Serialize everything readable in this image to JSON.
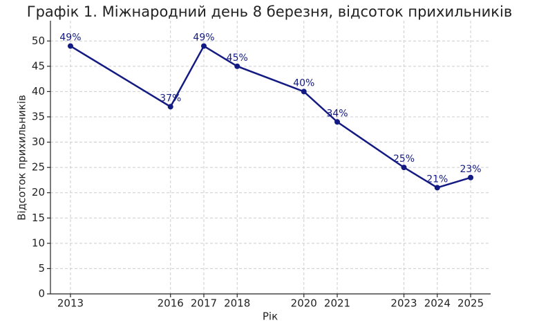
{
  "chart_data": {
    "type": "line",
    "title": "Графік 1. Міжнародний день 8 березня, відсоток прихильників",
    "x_label": "Рік",
    "y_label": "Відсоток прихильників",
    "x": [
      2013,
      2016,
      2017,
      2018,
      2020,
      2021,
      2023,
      2024,
      2025
    ],
    "values": [
      49,
      37,
      49,
      45,
      40,
      34,
      25,
      21,
      23
    ],
    "value_labels": [
      "49%",
      "37%",
      "49%",
      "45%",
      "40%",
      "34%",
      "25%",
      "21%",
      "23%"
    ],
    "color": "#131a82",
    "xlim": [
      2012.4,
      2025.6
    ],
    "xticks": [
      2013,
      2016,
      2017,
      2018,
      2020,
      2021,
      2023,
      2024,
      2025
    ],
    "ylim": [
      0,
      54
    ],
    "yticks": [
      0,
      5,
      10,
      15,
      20,
      25,
      30,
      35,
      40,
      45,
      50
    ],
    "grid": true
  }
}
